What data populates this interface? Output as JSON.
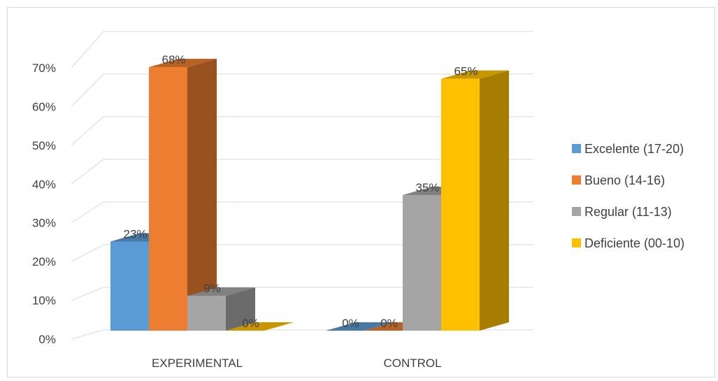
{
  "chart_data": {
    "type": "bar",
    "categories": [
      "EXPERIMENTAL",
      "CONTROL"
    ],
    "series": [
      {
        "name": "Excelente (17-20)",
        "values": [
          23,
          0
        ],
        "labels": [
          "23%",
          "0%"
        ],
        "color": "#5b9bd5"
      },
      {
        "name": "Bueno (14-16)",
        "values": [
          68,
          0
        ],
        "labels": [
          "68%",
          "0%"
        ],
        "color": "#ed7d31"
      },
      {
        "name": "Regular (11-13)",
        "values": [
          9,
          35
        ],
        "labels": [
          "9%",
          "35%"
        ],
        "color": "#a5a5a5"
      },
      {
        "name": "Deficiente (00-10)",
        "values": [
          0,
          65
        ],
        "labels": [
          "0%",
          "65%"
        ],
        "color": "#ffc000"
      }
    ],
    "yticks": [
      "0%",
      "10%",
      "20%",
      "30%",
      "40%",
      "50%",
      "60%",
      "70%"
    ],
    "ylim": [
      0,
      70
    ],
    "grid": true,
    "legend_position": "right",
    "three_d": true
  }
}
